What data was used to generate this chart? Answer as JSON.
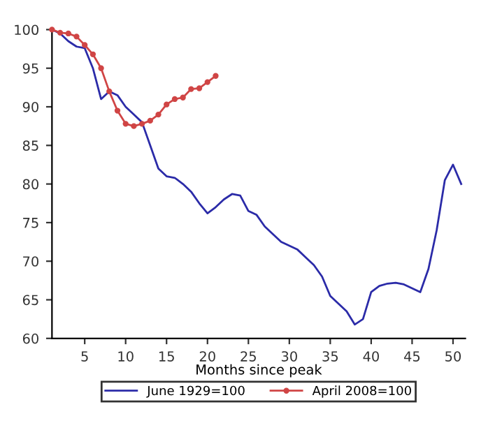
{
  "chart_data": {
    "type": "line",
    "xlabel": "Months since peak",
    "xlim": [
      1,
      51.5
    ],
    "xticks": [
      5,
      10,
      15,
      20,
      25,
      30,
      35,
      40,
      45,
      50
    ],
    "ylim": [
      60,
      100
    ],
    "yticks": [
      60,
      65,
      70,
      75,
      80,
      85,
      90,
      95,
      100
    ],
    "grid": false,
    "legend": "bottom",
    "series": [
      {
        "name": "June 1929=100",
        "color": "#2b2ba8",
        "marker": "none",
        "x": [
          1,
          2,
          3,
          4,
          5,
          6,
          7,
          8,
          9,
          10,
          11,
          12,
          13,
          14,
          15,
          16,
          17,
          18,
          19,
          20,
          21,
          22,
          23,
          24,
          25,
          26,
          27,
          28,
          29,
          30,
          31,
          32,
          33,
          34,
          35,
          36,
          37,
          38,
          39,
          40,
          41,
          42,
          43,
          44,
          45,
          46,
          47,
          48,
          49,
          50,
          51
        ],
        "values": [
          100,
          99.5,
          98.5,
          97.8,
          97.6,
          95,
          91,
          92,
          91.5,
          90,
          89,
          88,
          85,
          82,
          81,
          80.8,
          80,
          79,
          77.5,
          76.2,
          77,
          78,
          78.7,
          78.5,
          76.5,
          76,
          74.5,
          73.5,
          72.5,
          72,
          71.5,
          70.5,
          69.5,
          68,
          65.5,
          64.5,
          63.5,
          61.8,
          62.5,
          66,
          66.8,
          67.1,
          67.2,
          67,
          66.5,
          66,
          69,
          74,
          80.5,
          82.5,
          80
        ]
      },
      {
        "name": "April 2008=100",
        "color": "#d04545",
        "marker": "circle",
        "x": [
          1,
          2,
          3,
          4,
          5,
          6,
          7,
          8,
          9,
          10,
          11,
          12,
          13,
          14,
          15,
          16,
          17,
          18,
          19,
          20,
          21
        ],
        "values": [
          100,
          99.6,
          99.5,
          99.1,
          98,
          96.8,
          95,
          92,
          89.5,
          87.8,
          87.5,
          87.8,
          88.2,
          89,
          90.3,
          91,
          91.2,
          92.3,
          92.4,
          93.2,
          94
        ]
      }
    ]
  }
}
